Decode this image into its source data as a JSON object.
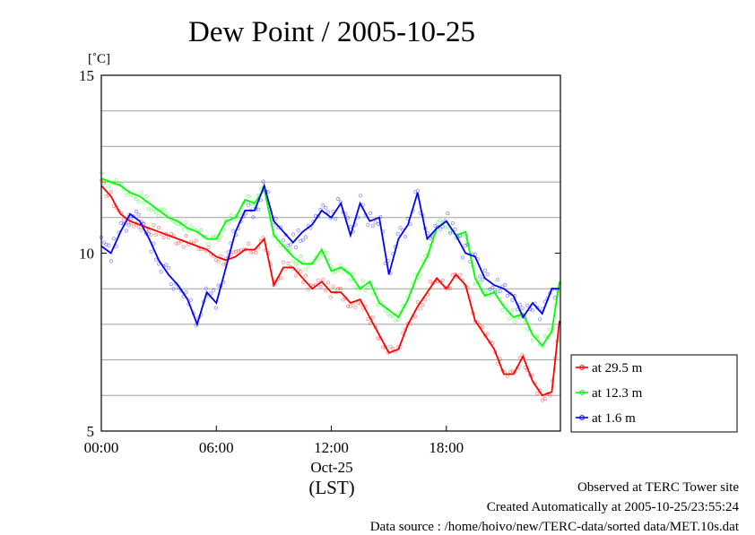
{
  "chart_data": {
    "type": "line",
    "title": "Dew Point / 2005-10-25",
    "y_unit": "[˚C]",
    "ylim": [
      5,
      15
    ],
    "y_ticks": [
      "5",
      "10",
      "15"
    ],
    "y_minor_grid": [
      6,
      7,
      8,
      9,
      11,
      12,
      13,
      14
    ],
    "xlim": [
      0,
      23.95
    ],
    "x_ticks": [
      {
        "hour": 0,
        "label": "00:00"
      },
      {
        "hour": 6,
        "label": "06:00"
      },
      {
        "hour": 12,
        "label": "12:00"
      },
      {
        "hour": 18,
        "label": "18:00"
      }
    ],
    "x_date_label": "Oct-25",
    "x_zone_label": "(LST)",
    "grid": "horizontal",
    "legend_position": "right",
    "series": [
      {
        "name": "at 29.5 m",
        "color": "#ff0000",
        "x": [
          0,
          0.5,
          1,
          1.5,
          2,
          2.5,
          3,
          3.5,
          4,
          4.5,
          5,
          5.5,
          6,
          6.5,
          7,
          7.5,
          8,
          8.5,
          9,
          9.5,
          10,
          10.5,
          11,
          11.5,
          12,
          12.5,
          13,
          13.5,
          14,
          14.5,
          15,
          15.5,
          16,
          16.5,
          17,
          17.5,
          18,
          18.5,
          19,
          19.5,
          20,
          20.5,
          21,
          21.5,
          22,
          22.5,
          23,
          23.5,
          23.9
        ],
        "values": [
          11.9,
          11.6,
          11.1,
          10.9,
          10.8,
          10.7,
          10.6,
          10.5,
          10.4,
          10.3,
          10.2,
          10.1,
          9.9,
          9.8,
          9.9,
          10.1,
          10.1,
          10.4,
          9.1,
          9.6,
          9.6,
          9.3,
          9.0,
          9.2,
          8.9,
          8.9,
          8.6,
          8.7,
          8.2,
          7.7,
          7.2,
          7.3,
          8.0,
          8.5,
          8.9,
          9.3,
          9.0,
          9.4,
          9.1,
          8.1,
          7.7,
          7.3,
          6.6,
          6.6,
          7.1,
          6.4,
          6.0,
          6.1,
          8.1
        ]
      },
      {
        "name": "at 12.3 m",
        "color": "#00ff00",
        "x": [
          0,
          0.5,
          1,
          1.5,
          2,
          2.5,
          3,
          3.5,
          4,
          4.5,
          5,
          5.5,
          6,
          6.5,
          7,
          7.5,
          8,
          8.5,
          9,
          9.5,
          10,
          10.5,
          11,
          11.5,
          12,
          12.5,
          13,
          13.5,
          14,
          14.5,
          15,
          15.5,
          16,
          16.5,
          17,
          17.5,
          18,
          18.5,
          19,
          19.5,
          20,
          20.5,
          21,
          21.5,
          22,
          22.5,
          23,
          23.5,
          23.9
        ],
        "values": [
          12.1,
          12.0,
          11.9,
          11.7,
          11.6,
          11.4,
          11.2,
          11.0,
          10.9,
          10.7,
          10.6,
          10.4,
          10.4,
          10.9,
          11.0,
          11.5,
          11.4,
          11.8,
          10.5,
          10.2,
          9.9,
          9.7,
          9.7,
          10.1,
          9.5,
          9.6,
          9.4,
          9.0,
          9.2,
          8.6,
          8.4,
          8.2,
          8.7,
          9.4,
          9.9,
          10.7,
          10.9,
          10.5,
          10.6,
          9.3,
          8.8,
          8.9,
          8.5,
          8.2,
          8.3,
          7.7,
          7.4,
          7.8,
          9.2
        ]
      },
      {
        "name": "at 1.6 m",
        "color": "#0000ff",
        "x": [
          0,
          0.5,
          1,
          1.5,
          2,
          2.5,
          3,
          3.5,
          4,
          4.5,
          5,
          5.5,
          6,
          6.5,
          7,
          7.5,
          8,
          8.5,
          9,
          9.5,
          10,
          10.5,
          11,
          11.5,
          12,
          12.5,
          13,
          13.5,
          14,
          14.5,
          15,
          15.5,
          16,
          16.5,
          17,
          17.5,
          18,
          18.5,
          19,
          19.5,
          20,
          20.5,
          21,
          21.5,
          22,
          22.5,
          23,
          23.5,
          23.9
        ],
        "values": [
          10.2,
          10.0,
          10.6,
          11.1,
          10.9,
          10.4,
          9.8,
          9.4,
          9.1,
          8.7,
          8.0,
          8.9,
          8.6,
          9.6,
          10.6,
          11.2,
          11.2,
          11.9,
          10.9,
          10.6,
          10.3,
          10.6,
          10.8,
          11.2,
          11.0,
          11.4,
          10.5,
          11.4,
          10.9,
          11.0,
          9.4,
          10.4,
          10.8,
          11.7,
          10.4,
          10.7,
          10.9,
          10.5,
          10.0,
          9.9,
          9.3,
          9.1,
          9.0,
          8.8,
          8.2,
          8.6,
          8.3,
          9.0,
          9.0
        ]
      }
    ]
  },
  "footer": {
    "line1": "Observed at TERC Tower site",
    "line2": "Created Automatically at 2005-10-25/23:55:24",
    "line3": "Data source : /home/hoivo/new/TERC-data/sorted  data/MET.10s.dat"
  }
}
